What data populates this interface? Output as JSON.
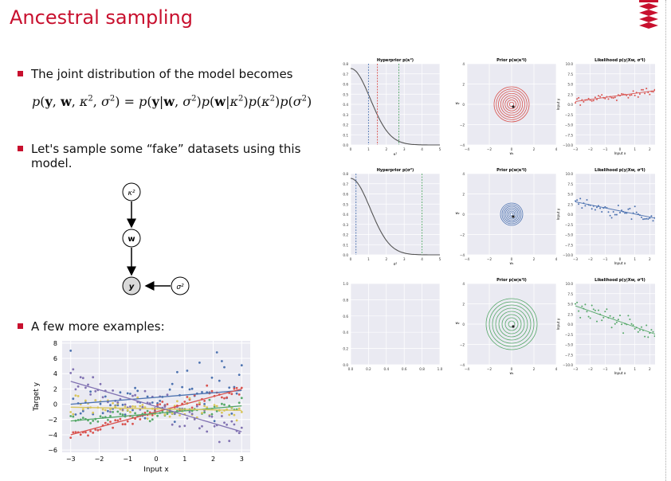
{
  "title": "Ancestral sampling",
  "bullets": {
    "b1": "The joint distribution of the model becomes",
    "b2_line1": "Let's sample some “fake” datasets using this",
    "b2_line2": "model.",
    "b3": "A few more examples:"
  },
  "graph": {
    "kappa": "κ²",
    "w": "w",
    "y": "y",
    "sigma": "σ²"
  },
  "colors": {
    "accent": "#c8102e",
    "red": "#d9534f",
    "blue": "#4c72b0",
    "green": "#55a868",
    "gold": "#d8c55a",
    "purple": "#8172b2"
  },
  "panel_titles": {
    "hyperprior_1": "Hyperprior p(κ²)",
    "prior_1": "Prior p(w|κ²I)",
    "likelihood_1": "Likelihood p(y|Xw, σ²I)",
    "hyperprior_2": "Hyperprior p(σ²)",
    "prior_2": "Prior p(w|κ²I)",
    "likelihood_2": "Likelihood p(y|Xw, σ²I)",
    "prior_3": "Prior p(w|κ²I)",
    "likelihood_3": "Likelihood p(y|Xw, σ²I)"
  },
  "axis_labels": {
    "input_x": "Input x",
    "input_y": "Input y",
    "w1": "w₁",
    "w2": "w₂",
    "kappa2": "κ²",
    "sigma2": "σ²"
  },
  "chart_data": [
    {
      "type": "scatter",
      "title": "",
      "xlabel": "Input x",
      "ylabel": "Target y",
      "xlim": [
        -3.3,
        3.3
      ],
      "ylim": [
        -6.3,
        8.3
      ],
      "xticks": [
        "−3",
        "−2",
        "−1",
        "0",
        "1",
        "2",
        "3"
      ],
      "yticks": [
        "−6",
        "−4",
        "−2",
        "0",
        "2",
        "4",
        "6",
        "8"
      ],
      "series": [
        {
          "color": "blue",
          "line": {
            "intercept": 0.9,
            "slope": 0.3
          },
          "noise": 1.8
        },
        {
          "color": "red",
          "line": {
            "intercept": -1.0,
            "slope": 1.0
          },
          "noise": 0.5
        },
        {
          "color": "green",
          "line": {
            "intercept": -1.2,
            "slope": 0.33
          },
          "noise": 0.5
        },
        {
          "color": "gold",
          "line": {
            "intercept": -0.6,
            "slope": -0.07
          },
          "noise": 0.8
        },
        {
          "color": "purple",
          "line": {
            "intercept": -0.3,
            "slope": -1.1
          },
          "noise": 1.1
        }
      ]
    }
  ],
  "small_ticks": {
    "hyper_y": [
      "0.8",
      "0.7",
      "0.6",
      "0.5",
      "0.4",
      "0.3",
      "0.2",
      "0.1",
      "0.0"
    ],
    "hyper_x": [
      "0",
      "1",
      "2",
      "3",
      "4",
      "5"
    ],
    "prior_y": [
      "4",
      "2",
      "0",
      "−2",
      "−4"
    ],
    "prior_x": [
      "−4",
      "−2",
      "0",
      "2",
      "4"
    ],
    "lik_y": [
      "10.0",
      "7.5",
      "5.0",
      "2.5",
      "0.0",
      "−2.5",
      "−5.0",
      "−7.5",
      "−10.0"
    ],
    "lik_x": [
      "−3",
      "−2",
      "−1",
      "0",
      "1",
      "2",
      "3"
    ],
    "empty_y": [
      "1.0",
      "0.8",
      "0.6",
      "0.4",
      "0.2",
      "0.0"
    ],
    "empty_x": [
      "0.0",
      "0.2",
      "0.4",
      "0.6",
      "0.8",
      "1.0"
    ]
  }
}
